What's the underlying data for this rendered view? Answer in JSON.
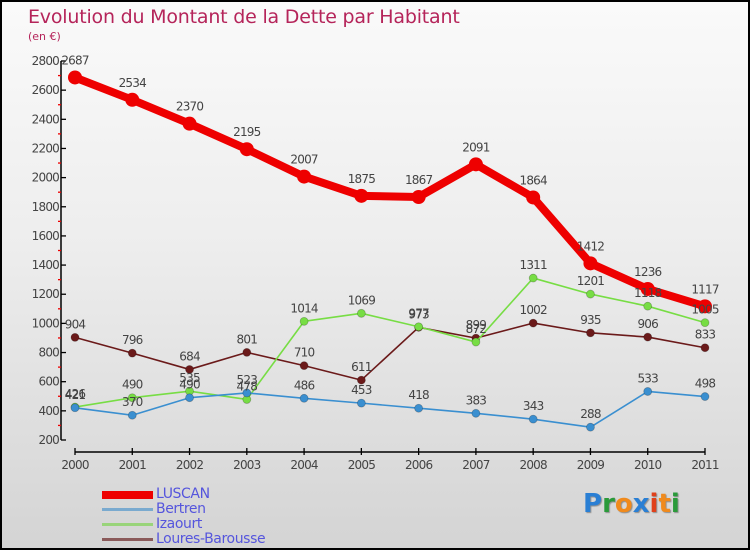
{
  "header": {
    "title": "Evolution du Montant de la Dette par Habitant",
    "subtitle": "(en €)"
  },
  "logo": {
    "text": "Proxiti",
    "letters": [
      {
        "ch": "P",
        "color": "#2a7fd4"
      },
      {
        "ch": "r",
        "color": "#2a9a3a"
      },
      {
        "ch": "o",
        "color": "#f08a1c"
      },
      {
        "ch": "x",
        "color": "#2a7fd4"
      },
      {
        "ch": "i",
        "color": "#e0401a"
      },
      {
        "ch": "t",
        "color": "#f08a1c"
      },
      {
        "ch": "i",
        "color": "#2a9a3a"
      }
    ]
  },
  "chart_data": {
    "type": "line",
    "title": "Evolution du Montant de la Dette par Habitant",
    "subtitle": "(en €)",
    "xlabel": "",
    "ylabel": "",
    "x": [
      "2000",
      "2001",
      "2002",
      "2003",
      "2004",
      "2005",
      "2006",
      "2007",
      "2008",
      "2009",
      "2010",
      "2011"
    ],
    "ylim": [
      200,
      2800
    ],
    "yticks": [
      200,
      400,
      600,
      800,
      1000,
      1200,
      1400,
      1600,
      1800,
      2000,
      2200,
      2400,
      2600,
      2800
    ],
    "grid": false,
    "legend_position": "bottom-left",
    "series": [
      {
        "name": "LUSCAN",
        "color": "#ee0000",
        "values": [
          2687,
          2534,
          2370,
          2195,
          2007,
          1875,
          1867,
          2091,
          1864,
          1412,
          1236,
          1117
        ]
      },
      {
        "name": "Bertren",
        "color": "#3a8fd0",
        "values": [
          421,
          370,
          490,
          523,
          486,
          453,
          418,
          383,
          343,
          288,
          533,
          498
        ]
      },
      {
        "name": "Izaourt",
        "color": "#77dd44",
        "values": [
          426,
          490,
          535,
          478,
          1014,
          1069,
          977,
          872,
          1311,
          1201,
          1118,
          1005
        ]
      },
      {
        "name": "Loures-Barousse",
        "color": "#6b1a1a",
        "values": [
          904,
          796,
          684,
          801,
          710,
          611,
          973,
          899,
          1002,
          935,
          906,
          833
        ]
      }
    ]
  },
  "legend": {
    "items": [
      {
        "label": "LUSCAN",
        "color": "#ee0000"
      },
      {
        "label": "Bertren",
        "color": "#7aaacf"
      },
      {
        "label": "Izaourt",
        "color": "#99d47a"
      },
      {
        "label": "Loures-Barousse",
        "color": "#8a5a5a"
      }
    ]
  }
}
